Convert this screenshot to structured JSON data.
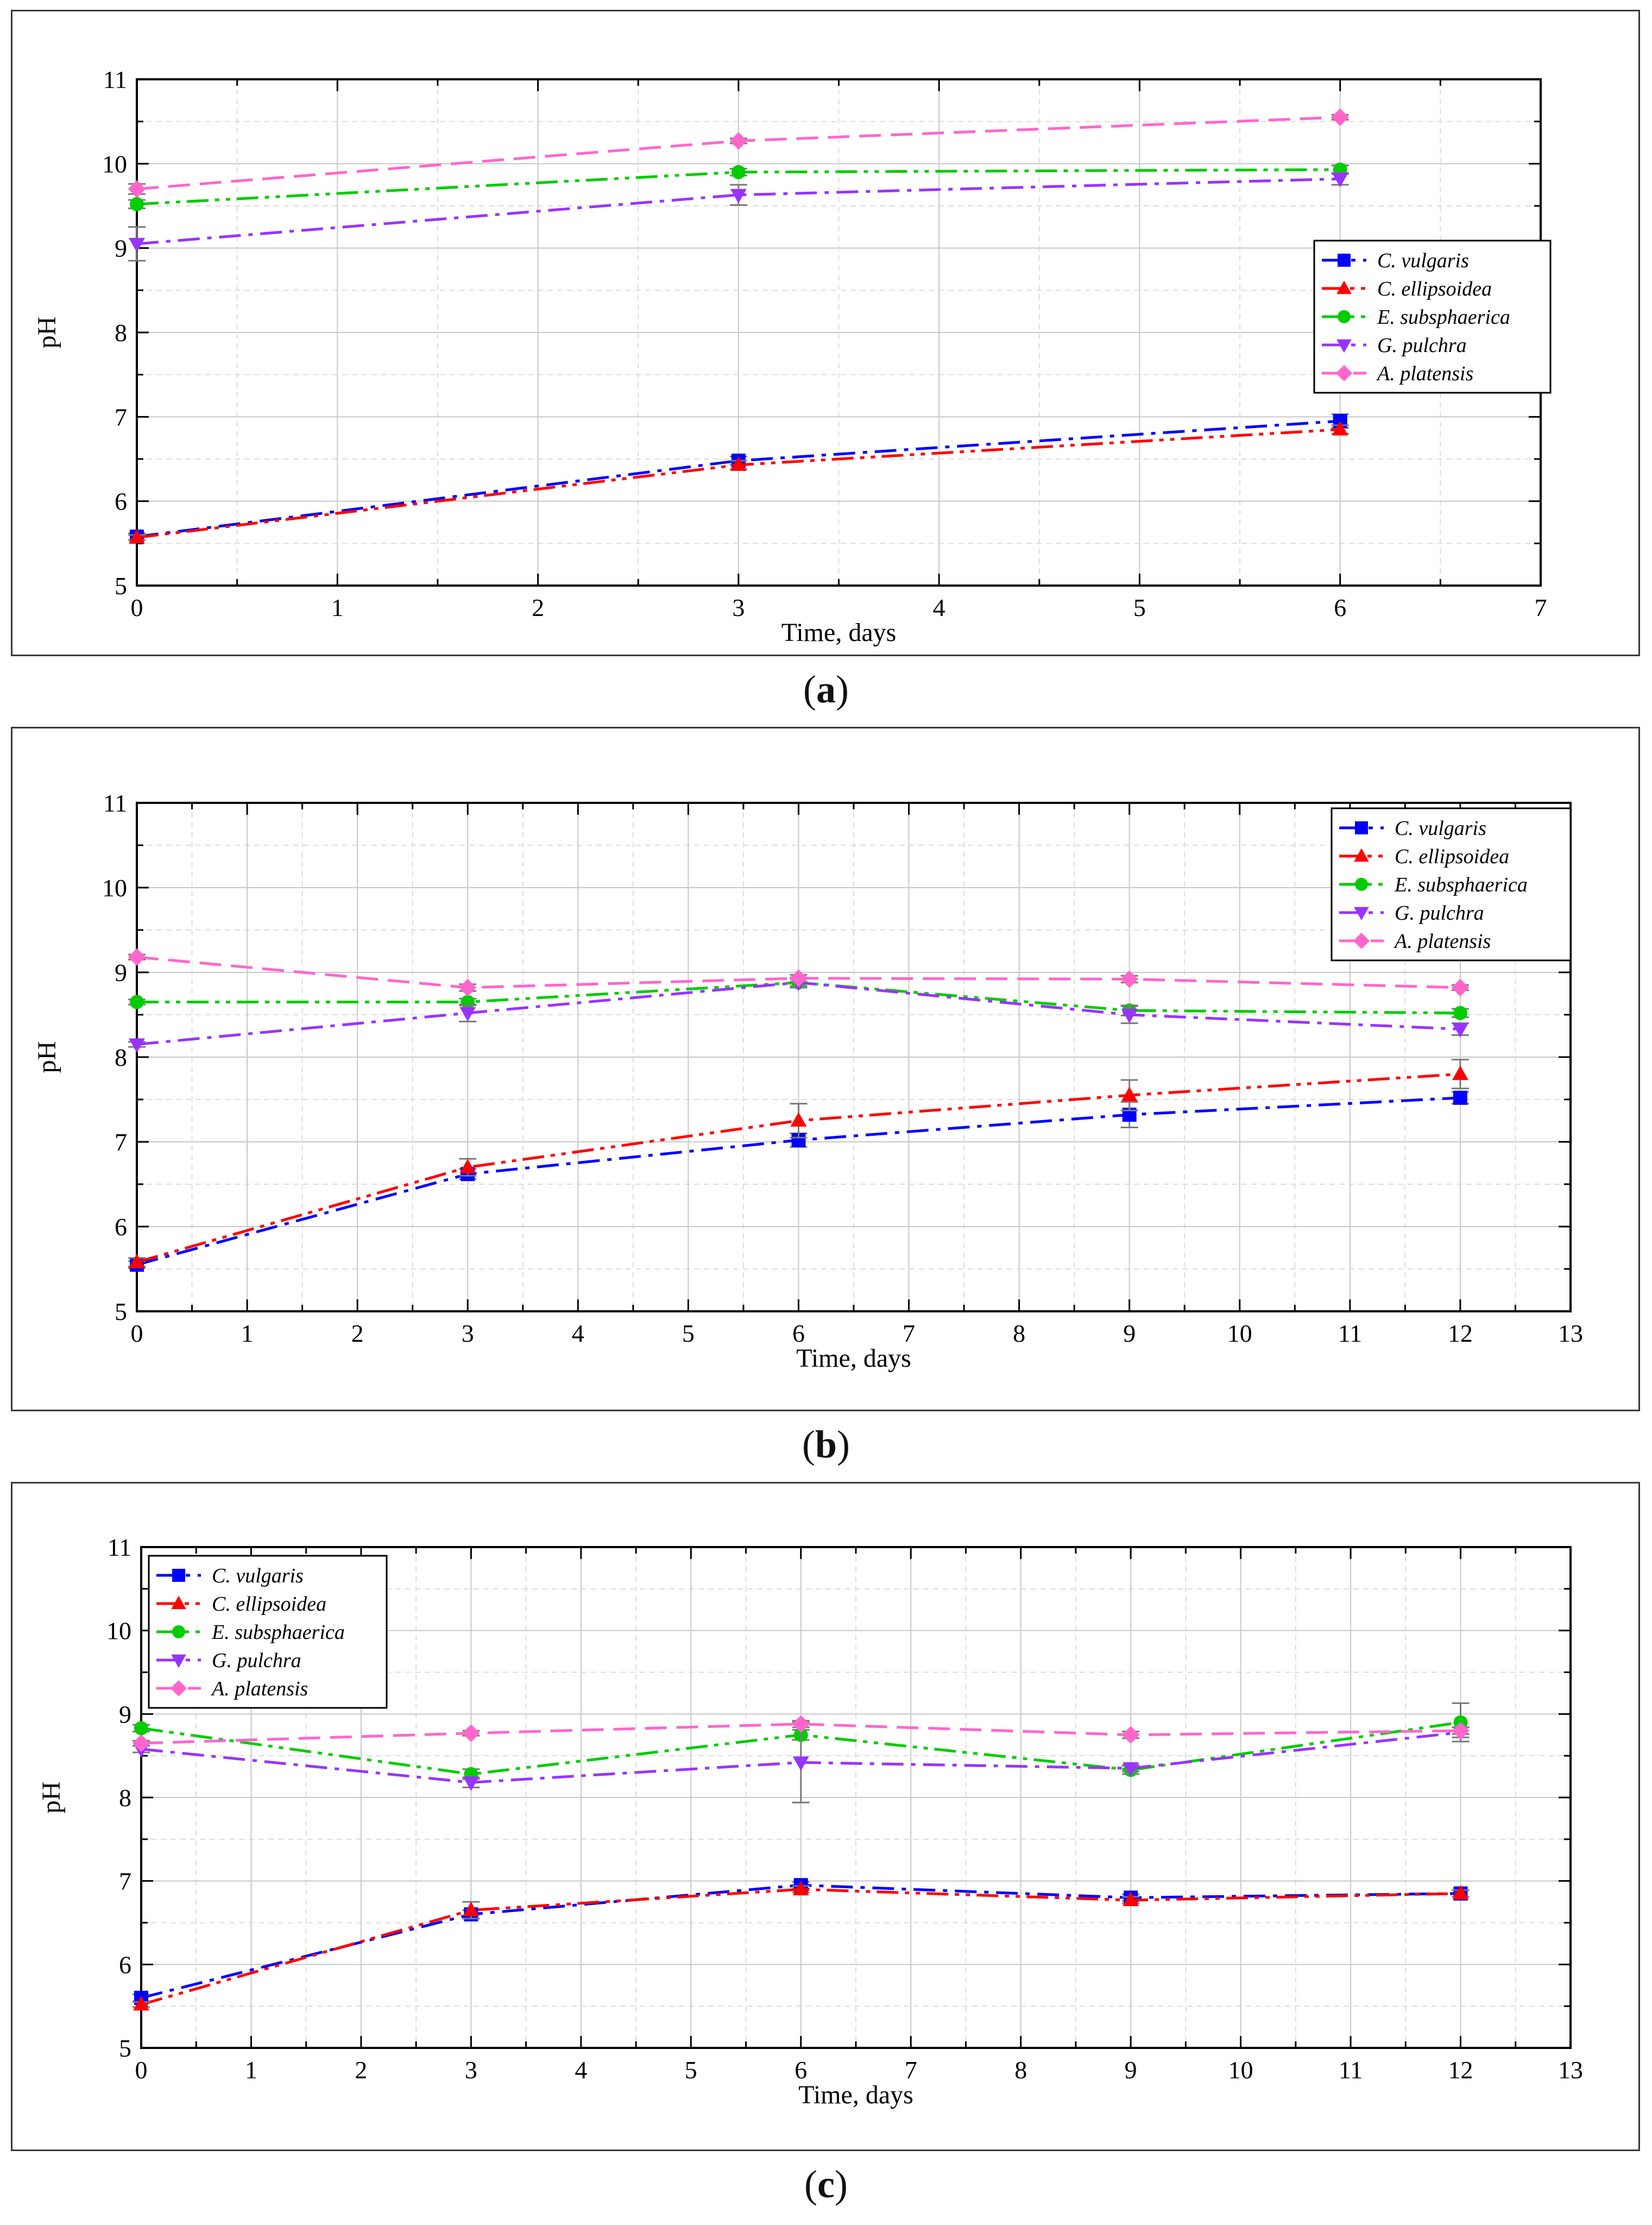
{
  "chart_data": [
    {
      "type": "line",
      "caption": "a",
      "xlabel": "Time, days",
      "ylabel": "pH",
      "xlim": [
        0,
        7
      ],
      "ylim": [
        5,
        11
      ],
      "xticks": [
        0,
        1,
        2,
        3,
        4,
        5,
        6,
        7
      ],
      "yticks": [
        5,
        6,
        7,
        8,
        9,
        10,
        11
      ],
      "grid": true,
      "legend_position": "middle-right",
      "x": [
        0,
        3,
        6
      ],
      "series": [
        {
          "name": "C. vulgaris",
          "values": [
            5.58,
            6.48,
            6.95
          ],
          "err": [
            0.04,
            0.05,
            0.08
          ],
          "color": "#0000ff",
          "marker": "square",
          "dash": "dashdot"
        },
        {
          "name": "C. ellipsoidea",
          "values": [
            5.57,
            6.43,
            6.85
          ],
          "err": [
            0.03,
            0.05,
            0.05
          ],
          "color": "#ff0000",
          "marker": "triangle-up",
          "dash": "dashdotdot"
        },
        {
          "name": "E. subsphaerica",
          "values": [
            9.52,
            9.9,
            9.93
          ],
          "err": [
            0.05,
            0.04,
            0.05
          ],
          "color": "#00cc00",
          "marker": "circle",
          "dash": "dashdotdot"
        },
        {
          "name": "G. pulchra",
          "values": [
            9.05,
            9.63,
            9.82
          ],
          "err": [
            0.2,
            0.12,
            0.07
          ],
          "color": "#9933ff",
          "marker": "triangle-down",
          "dash": "dashdot"
        },
        {
          "name": "A. platensis",
          "values": [
            9.7,
            10.27,
            10.55
          ],
          "err": [
            0.06,
            0.03,
            0.03
          ],
          "color": "#ff66cc",
          "marker": "diamond",
          "dash": "dash"
        }
      ]
    },
    {
      "type": "line",
      "caption": "b",
      "xlabel": "Time, days",
      "ylabel": "pH",
      "xlim": [
        0,
        13
      ],
      "ylim": [
        5,
        11
      ],
      "xticks": [
        0,
        1,
        2,
        3,
        4,
        5,
        6,
        7,
        8,
        9,
        10,
        11,
        12,
        13
      ],
      "yticks": [
        5,
        6,
        7,
        8,
        9,
        10,
        11
      ],
      "grid": true,
      "legend_position": "top-right",
      "x": [
        0,
        3,
        6,
        9,
        12
      ],
      "series": [
        {
          "name": "C. vulgaris",
          "values": [
            5.55,
            6.62,
            7.02,
            7.32,
            7.52
          ],
          "err": [
            0.04,
            0.06,
            0.08,
            0.15,
            0.07
          ],
          "color": "#0000ff",
          "marker": "square",
          "dash": "dashdot"
        },
        {
          "name": "C. ellipsoidea",
          "values": [
            5.58,
            6.7,
            7.25,
            7.55,
            7.8
          ],
          "err": [
            0.05,
            0.1,
            0.2,
            0.18,
            0.17
          ],
          "color": "#ff0000",
          "marker": "triangle-up",
          "dash": "dashdotdot"
        },
        {
          "name": "E. subsphaerica",
          "values": [
            8.65,
            8.65,
            8.88,
            8.55,
            8.52
          ],
          "err": [
            0.03,
            0.04,
            0.04,
            0.06,
            0.05
          ],
          "color": "#00cc00",
          "marker": "circle",
          "dash": "dashdotdot"
        },
        {
          "name": "G. pulchra",
          "values": [
            8.15,
            8.52,
            8.88,
            8.5,
            8.33
          ],
          "err": [
            0.03,
            0.1,
            0.06,
            0.1,
            0.07
          ],
          "color": "#9933ff",
          "marker": "triangle-down",
          "dash": "dashdot"
        },
        {
          "name": "A. platensis",
          "values": [
            9.18,
            8.82,
            8.93,
            8.92,
            8.82
          ],
          "err": [
            0.03,
            0.04,
            0.04,
            0.04,
            0.03
          ],
          "color": "#ff66cc",
          "marker": "diamond",
          "dash": "dash"
        }
      ]
    },
    {
      "type": "line",
      "caption": "c",
      "xlabel": "Time, days",
      "ylabel": "pH",
      "xlim": [
        0,
        13
      ],
      "ylim": [
        5,
        11
      ],
      "xticks": [
        0,
        1,
        2,
        3,
        4,
        5,
        6,
        7,
        8,
        9,
        10,
        11,
        12,
        13
      ],
      "yticks": [
        5,
        6,
        7,
        8,
        9,
        10,
        11
      ],
      "grid": true,
      "legend_position": "top-left",
      "x": [
        0,
        3,
        6,
        9,
        12
      ],
      "series": [
        {
          "name": "C. vulgaris",
          "values": [
            5.6,
            6.6,
            6.95,
            6.8,
            6.85
          ],
          "err": [
            0.04,
            0.05,
            0.04,
            0.04,
            0.04
          ],
          "color": "#0000ff",
          "marker": "square",
          "dash": "dashdot"
        },
        {
          "name": "C. ellipsoidea",
          "values": [
            5.52,
            6.65,
            6.9,
            6.77,
            6.85
          ],
          "err": [
            0.03,
            0.1,
            0.04,
            0.04,
            0.04
          ],
          "color": "#ff0000",
          "marker": "triangle-up",
          "dash": "dashdotdot"
        },
        {
          "name": "E. subsphaerica",
          "values": [
            8.83,
            8.28,
            8.75,
            8.33,
            8.9
          ],
          "err": [
            0.04,
            0.06,
            0.06,
            0.05,
            0.23
          ],
          "color": "#00cc00",
          "marker": "circle",
          "dash": "dashdotdot"
        },
        {
          "name": "G. pulchra",
          "values": [
            8.58,
            8.18,
            8.42,
            8.35,
            8.78
          ],
          "err": [
            0.04,
            0.06,
            0.48,
            0.04,
            0.06
          ],
          "color": "#9933ff",
          "marker": "triangle-down",
          "dash": "dashdot"
        },
        {
          "name": "A. platensis",
          "values": [
            8.65,
            8.77,
            8.88,
            8.75,
            8.8
          ],
          "err": [
            0.03,
            0.03,
            0.04,
            0.04,
            0.04
          ],
          "color": "#ff66cc",
          "marker": "diamond",
          "dash": "dash"
        }
      ]
    }
  ]
}
